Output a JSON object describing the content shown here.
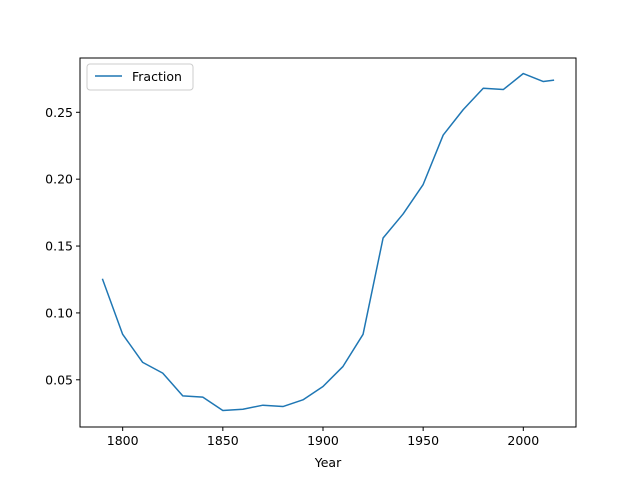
{
  "chart_data": {
    "type": "line",
    "title": "",
    "xlabel": "Year",
    "ylabel": "",
    "xlim": [
      1778.7,
      2026.3
    ],
    "ylim": [
      0.0147,
      0.2906
    ],
    "xticks": [
      1800,
      1850,
      1900,
      1950,
      2000
    ],
    "xtick_labels": [
      "1800",
      "1850",
      "1900",
      "1950",
      "2000"
    ],
    "yticks": [
      0.05,
      0.1,
      0.15,
      0.2,
      0.25
    ],
    "ytick_labels": [
      "0.05",
      "0.10",
      "0.15",
      "0.20",
      "0.25"
    ],
    "grid": false,
    "legend_position": "upper-left",
    "series": [
      {
        "name": "Fraction",
        "color": "#1f77b4",
        "x": [
          1790,
          1800,
          1810,
          1820,
          1830,
          1840,
          1850,
          1860,
          1870,
          1880,
          1890,
          1900,
          1910,
          1920,
          1930,
          1940,
          1950,
          1960,
          1970,
          1980,
          1990,
          2000,
          2010,
          2015
        ],
        "y": [
          0.125,
          0.084,
          0.063,
          0.055,
          0.038,
          0.037,
          0.027,
          0.028,
          0.031,
          0.03,
          0.035,
          0.045,
          0.06,
          0.084,
          0.156,
          0.174,
          0.196,
          0.233,
          0.252,
          0.268,
          0.267,
          0.279,
          0.273,
          0.274
        ]
      }
    ]
  }
}
